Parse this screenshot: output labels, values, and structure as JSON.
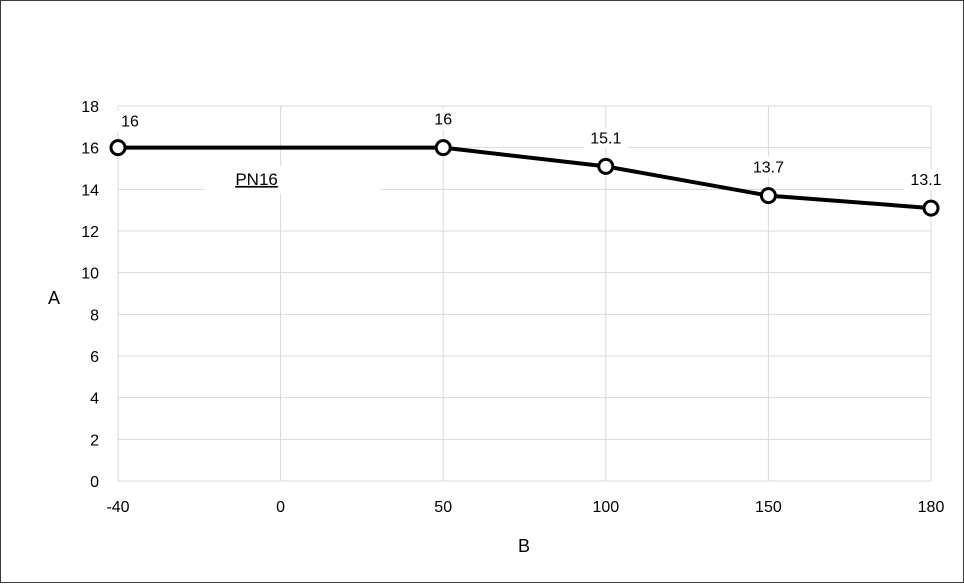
{
  "chart_data": {
    "type": "line",
    "x": [
      "-40",
      "0",
      "50",
      "100",
      "150",
      "180"
    ],
    "xlabel": "B",
    "ylabel": "A",
    "ylim": [
      0,
      18
    ],
    "yticks": [
      0,
      2,
      4,
      6,
      8,
      10,
      12,
      14,
      16,
      18
    ],
    "grid": true,
    "series": [
      {
        "points": [
          {
            "x": "-40",
            "y": 16
          },
          {
            "x": "50",
            "y": 16
          },
          {
            "x": "100",
            "y": 15.1
          },
          {
            "x": "150",
            "y": 13.7
          },
          {
            "x": "180",
            "y": 13.1
          }
        ],
        "data_labels": [
          "16",
          "16",
          "15.1",
          "13.7",
          "13.1"
        ],
        "color": "#000000"
      }
    ],
    "annotations": [
      {
        "text": "PN16",
        "x": "0",
        "y": 14.5
      }
    ]
  }
}
